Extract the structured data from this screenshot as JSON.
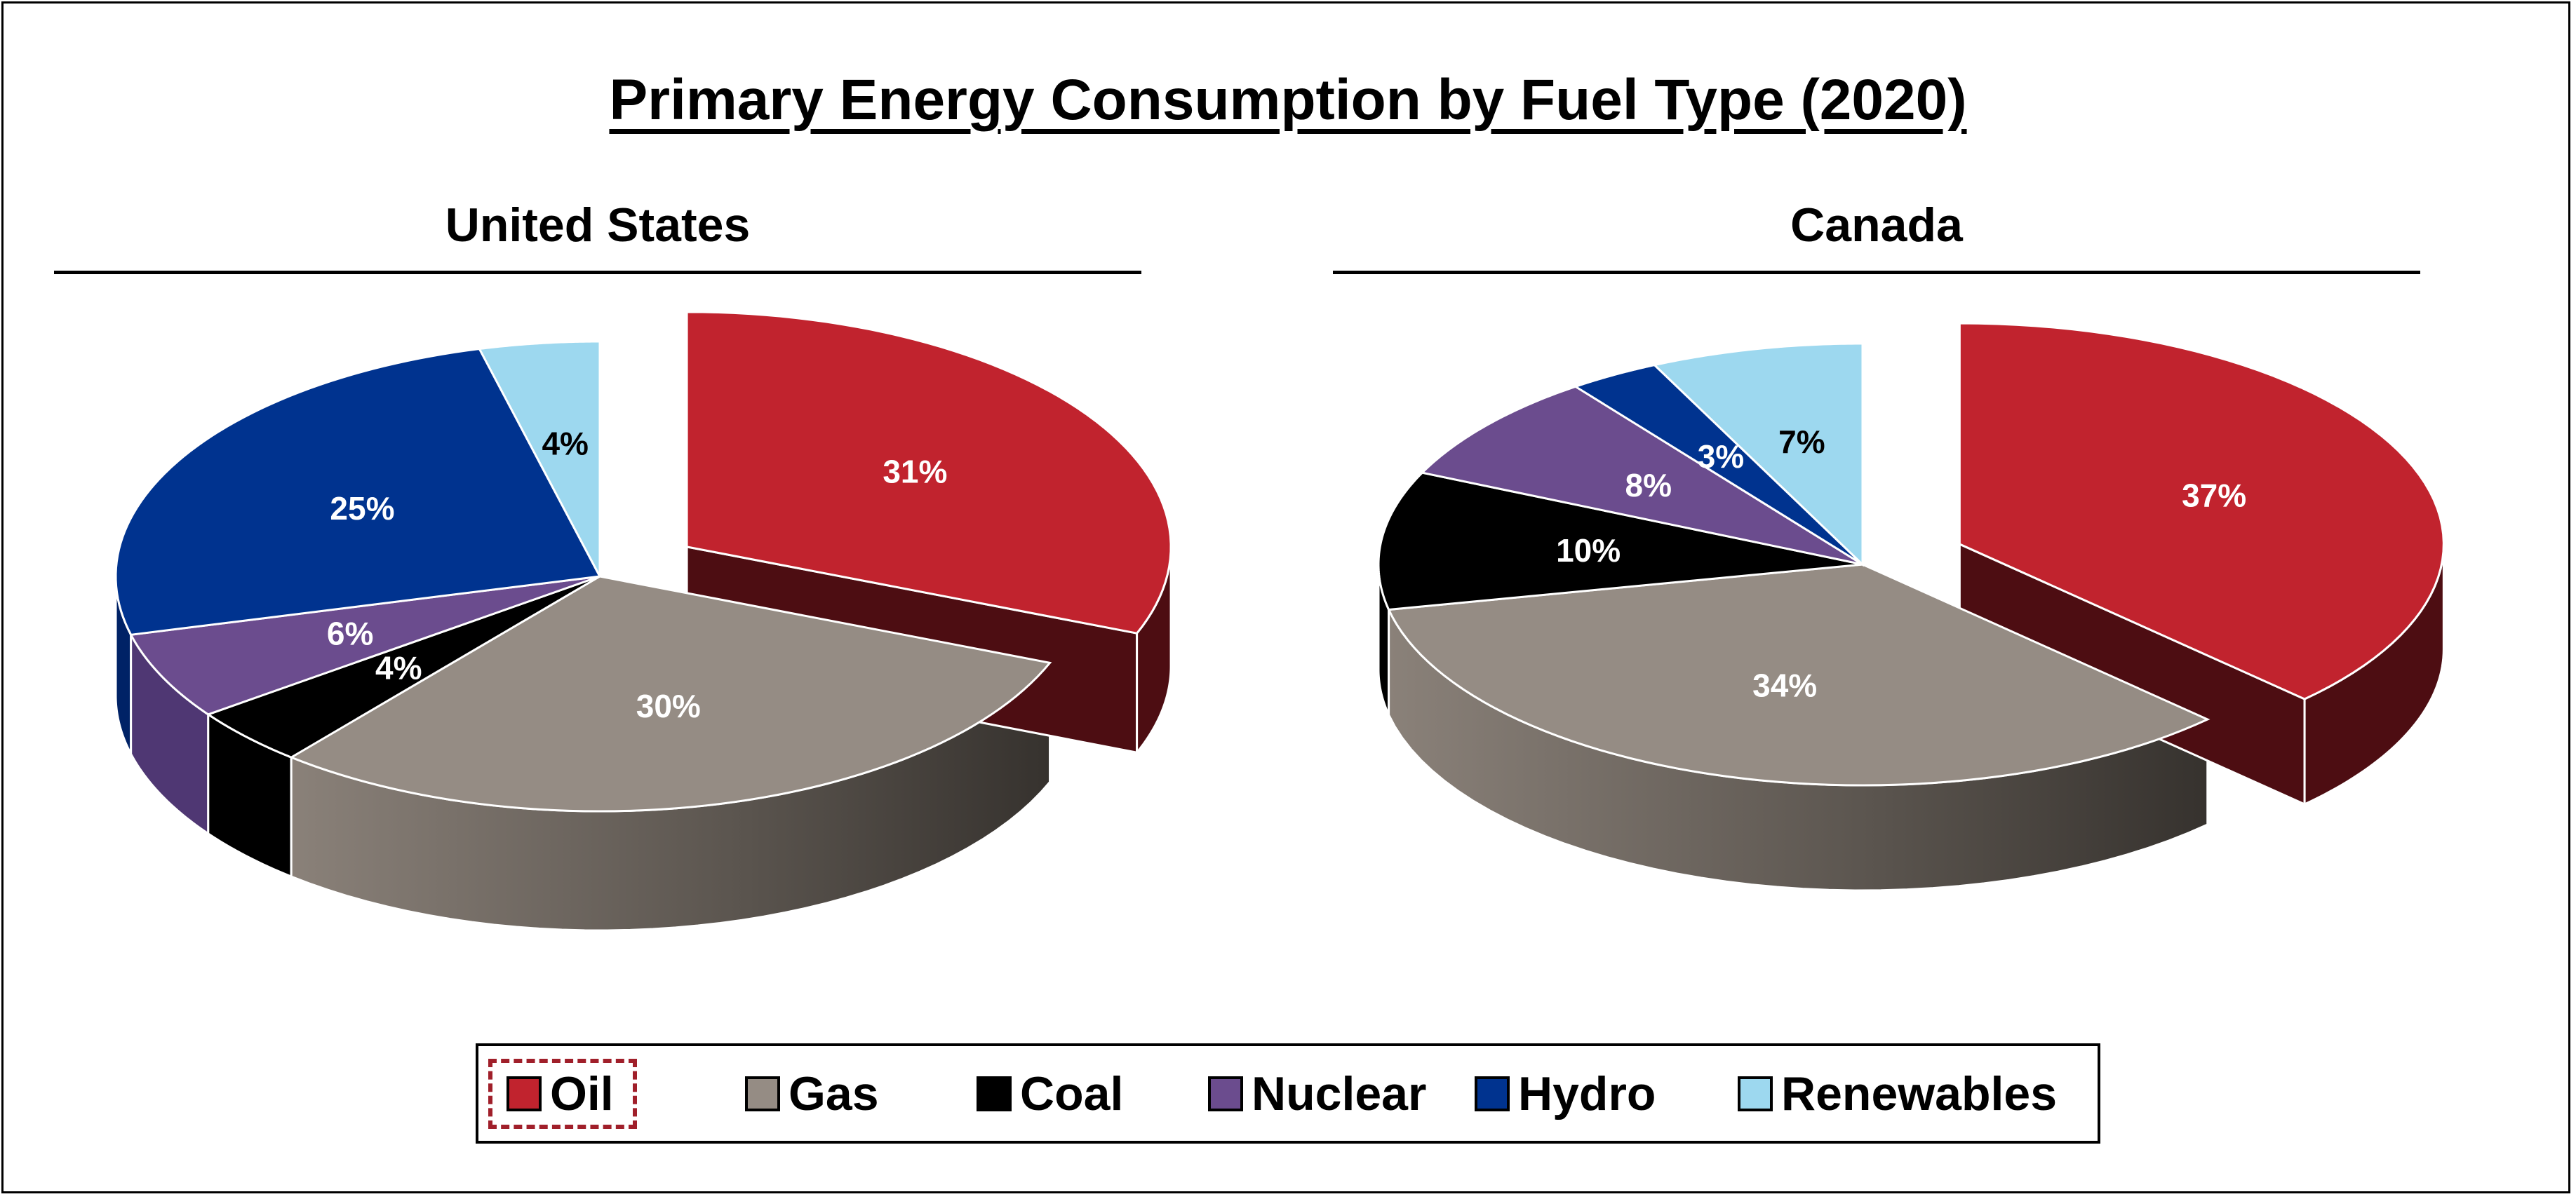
{
  "title": "Primary Energy Consumption by Fuel Type (2020)",
  "colors": {
    "Oil": "#c1232e",
    "Gas": "#958c84",
    "Coal": "#000000",
    "Nuclear": "#6b4c8e",
    "Hydro": "#00338f",
    "Renewables": "#9dd8ef"
  },
  "legend": {
    "items": [
      "Oil",
      "Gas",
      "Coal",
      "Nuclear",
      "Hydro",
      "Renewables"
    ],
    "selected": "Oil"
  },
  "chart_data": [
    {
      "type": "pie",
      "title": "United States",
      "categories": [
        "Oil",
        "Gas",
        "Coal",
        "Nuclear",
        "Hydro",
        "Renewables"
      ],
      "values": [
        31,
        30,
        4,
        6,
        25,
        4
      ],
      "labels": [
        "31%",
        "30%",
        "4%",
        "6%",
        "25%",
        "4%"
      ],
      "exploded": "Oil",
      "style": "3d"
    },
    {
      "type": "pie",
      "title": "Canada",
      "categories": [
        "Oil",
        "Gas",
        "Coal",
        "Nuclear",
        "Hydro",
        "Renewables"
      ],
      "values": [
        37,
        34,
        10,
        8,
        3,
        7
      ],
      "labels": [
        "37%",
        "34%",
        "10%",
        "8%",
        "3%",
        "7%"
      ],
      "exploded": "Oil",
      "style": "3d"
    }
  ]
}
